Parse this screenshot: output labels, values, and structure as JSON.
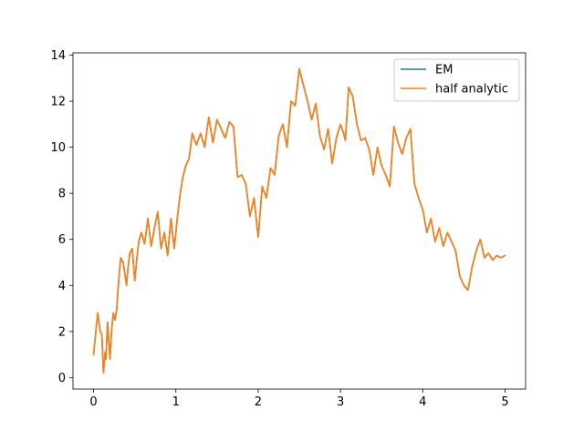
{
  "chart_data": {
    "type": "line",
    "title": "",
    "xlabel": "",
    "ylabel": "",
    "xlim": [
      -0.25,
      5.25
    ],
    "ylim": [
      -0.5,
      14.1
    ],
    "xticks": [
      0,
      1,
      2,
      3,
      4,
      5
    ],
    "yticks": [
      0,
      2,
      4,
      6,
      8,
      10,
      12,
      14
    ],
    "xtick_labels": [
      "0",
      "1",
      "2",
      "3",
      "4",
      "5"
    ],
    "ytick_labels": [
      "0",
      "2",
      "4",
      "6",
      "8",
      "10",
      "12",
      "14"
    ],
    "grid": false,
    "legend_position": "top-right",
    "x": [
      0.0,
      0.05,
      0.08,
      0.1,
      0.12,
      0.14,
      0.15,
      0.17,
      0.2,
      0.22,
      0.24,
      0.26,
      0.28,
      0.3,
      0.33,
      0.36,
      0.4,
      0.42,
      0.44,
      0.47,
      0.5,
      0.53,
      0.55,
      0.58,
      0.62,
      0.66,
      0.7,
      0.74,
      0.78,
      0.82,
      0.86,
      0.9,
      0.94,
      0.98,
      1.02,
      1.05,
      1.08,
      1.12,
      1.16,
      1.2,
      1.25,
      1.3,
      1.35,
      1.4,
      1.45,
      1.5,
      1.55,
      1.6,
      1.65,
      1.7,
      1.75,
      1.8,
      1.85,
      1.9,
      1.95,
      2.0,
      2.05,
      2.1,
      2.15,
      2.2,
      2.25,
      2.3,
      2.35,
      2.4,
      2.45,
      2.5,
      2.55,
      2.6,
      2.65,
      2.7,
      2.75,
      2.8,
      2.85,
      2.9,
      2.95,
      3.0,
      3.03,
      3.06,
      3.1,
      3.15,
      3.2,
      3.25,
      3.3,
      3.35,
      3.4,
      3.45,
      3.5,
      3.55,
      3.6,
      3.65,
      3.7,
      3.75,
      3.8,
      3.85,
      3.9,
      3.95,
      4.0,
      4.05,
      4.1,
      4.15,
      4.2,
      4.25,
      4.3,
      4.35,
      4.4,
      4.45,
      4.5,
      4.55,
      4.6,
      4.65,
      4.7,
      4.75,
      4.8,
      4.85,
      4.9,
      4.95,
      5.0
    ],
    "series": [
      {
        "name": "EM",
        "color": "#1f77b4",
        "values": [
          1.0,
          2.8,
          2.0,
          1.9,
          0.2,
          1.1,
          0.8,
          2.4,
          0.8,
          2.1,
          2.8,
          2.5,
          2.9,
          4.0,
          5.2,
          5.0,
          4.0,
          4.8,
          5.4,
          5.6,
          4.2,
          5.3,
          5.9,
          6.3,
          5.8,
          6.9,
          5.7,
          6.5,
          7.2,
          5.6,
          6.3,
          5.3,
          6.9,
          5.6,
          7.0,
          7.9,
          8.6,
          9.2,
          9.5,
          10.6,
          10.1,
          10.6,
          10.0,
          11.3,
          10.2,
          11.2,
          10.8,
          10.4,
          11.1,
          10.9,
          8.7,
          8.8,
          8.4,
          7.0,
          7.8,
          6.1,
          8.3,
          7.8,
          9.1,
          8.8,
          10.5,
          11.0,
          10.0,
          12.0,
          11.8,
          13.4,
          12.7,
          12.0,
          11.2,
          11.9,
          10.5,
          9.9,
          10.8,
          9.3,
          10.4,
          11.0,
          10.7,
          10.3,
          12.6,
          12.2,
          11.0,
          10.3,
          10.4,
          9.9,
          8.8,
          10.0,
          9.2,
          8.8,
          8.3,
          10.9,
          10.2,
          9.7,
          10.4,
          10.8,
          8.4,
          7.8,
          7.3,
          6.3,
          6.9,
          5.9,
          6.5,
          5.7,
          6.3,
          5.9,
          5.5,
          4.4,
          4.0,
          3.8,
          4.8,
          5.5,
          6.0,
          5.2,
          5.4,
          5.1,
          5.3,
          5.2,
          5.3
        ]
      },
      {
        "name": "half analytic",
        "color": "#ff7f0e",
        "values": [
          1.0,
          2.8,
          2.0,
          1.9,
          0.2,
          1.1,
          0.8,
          2.4,
          0.8,
          2.1,
          2.8,
          2.5,
          2.9,
          4.0,
          5.2,
          5.0,
          4.0,
          4.8,
          5.4,
          5.6,
          4.2,
          5.3,
          5.9,
          6.3,
          5.8,
          6.9,
          5.7,
          6.5,
          7.2,
          5.6,
          6.3,
          5.3,
          6.9,
          5.6,
          7.0,
          7.9,
          8.6,
          9.2,
          9.5,
          10.6,
          10.1,
          10.6,
          10.0,
          11.3,
          10.2,
          11.2,
          10.8,
          10.4,
          11.1,
          10.9,
          8.7,
          8.8,
          8.4,
          7.0,
          7.8,
          6.1,
          8.3,
          7.8,
          9.1,
          8.8,
          10.5,
          11.0,
          10.0,
          12.0,
          11.8,
          13.4,
          12.7,
          12.0,
          11.2,
          11.9,
          10.5,
          9.9,
          10.8,
          9.3,
          10.4,
          11.0,
          10.7,
          10.3,
          12.6,
          12.2,
          11.0,
          10.3,
          10.4,
          9.9,
          8.8,
          10.0,
          9.2,
          8.8,
          8.3,
          10.9,
          10.2,
          9.7,
          10.4,
          10.8,
          8.4,
          7.8,
          7.3,
          6.3,
          6.9,
          5.9,
          6.5,
          5.7,
          6.3,
          5.9,
          5.5,
          4.4,
          4.0,
          3.8,
          4.8,
          5.5,
          6.0,
          5.2,
          5.4,
          5.1,
          5.3,
          5.2,
          5.3
        ]
      }
    ]
  }
}
